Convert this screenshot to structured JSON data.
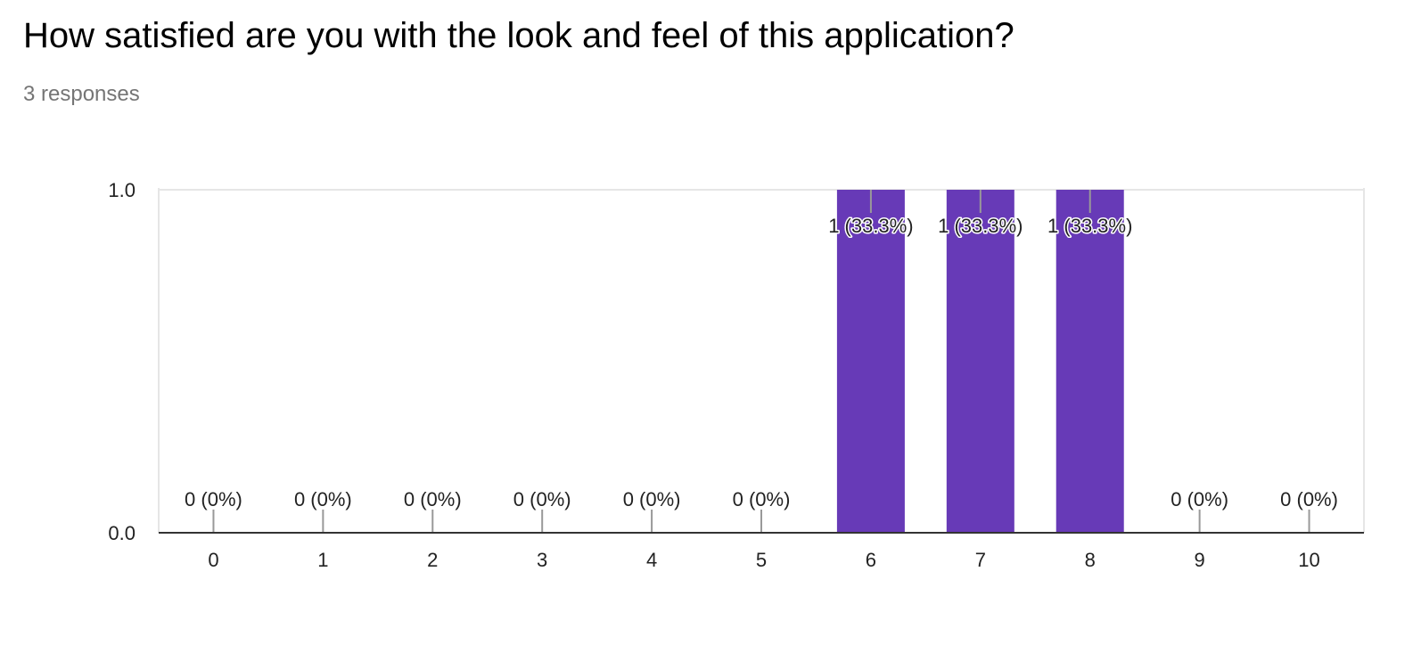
{
  "question": {
    "title": "How satisfied are you with the look and feel of this application?",
    "responses": "3 responses"
  },
  "chart_data": {
    "type": "bar",
    "categories": [
      "0",
      "1",
      "2",
      "3",
      "4",
      "5",
      "6",
      "7",
      "8",
      "9",
      "10"
    ],
    "values": [
      0,
      0,
      0,
      0,
      0,
      0,
      1,
      1,
      1,
      0,
      0
    ],
    "data_labels": [
      "0 (0%)",
      "0 (0%)",
      "0 (0%)",
      "0 (0%)",
      "0 (0%)",
      "0 (0%)",
      "1 (33.3%)",
      "1 (33.3%)",
      "1 (33.3%)",
      "0 (0%)",
      "0 (0%)"
    ],
    "ylim": [
      0,
      1
    ],
    "y_ticks": [
      "0.0",
      "1.0"
    ],
    "xlabel": "",
    "ylabel": "",
    "grid": true,
    "colors": {
      "bar": "#673ab7",
      "axis": "#333333",
      "grid": "#e6e6e6",
      "tick": "#999999"
    }
  }
}
